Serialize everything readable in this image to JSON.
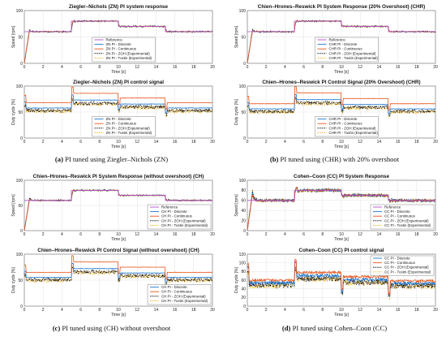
{
  "captions": [
    {
      "letter": "(a)",
      "text": " PI tuned using Ziegler–Nichols (ZN)"
    },
    {
      "letter": "(b)",
      "text": " PI tuned using (CHR) with 20% overshoot"
    },
    {
      "letter": "(c)",
      "text": " PI tuned using (CH) without overshoot"
    },
    {
      "letter": "(d)",
      "text": " PI tuned using Cohen–Coon (CC)"
    }
  ],
  "chart_data": [
    {
      "type": "line",
      "panel": "a-top",
      "title": "Ziegler–Nichols (ZN) PI system response",
      "xlabel": "Time [s]",
      "ylabel": "Speed [rpm]",
      "xlim": [
        0,
        20
      ],
      "ylim": [
        0,
        100
      ],
      "xticks": [
        "0",
        "2",
        "4",
        "6",
        "8",
        "10",
        "12",
        "14",
        "16",
        "18",
        "20"
      ],
      "yticks": [
        "0",
        "50",
        "100"
      ],
      "grid": true,
      "legend_position": "lower-center",
      "legend": [
        "Reference",
        "ZN PI - Discrete",
        "ZN PI - Continuous",
        "ZN PI - ZOH (Experimental)",
        "ZN PI - Tustin (Experimental)"
      ],
      "reference": [
        [
          0,
          60
        ],
        [
          5,
          60
        ],
        [
          5,
          80
        ],
        [
          10,
          80
        ],
        [
          10,
          70
        ],
        [
          15,
          70
        ],
        [
          15,
          60
        ],
        [
          20,
          60
        ]
      ]
    },
    {
      "type": "line",
      "panel": "a-bottom",
      "title": "Ziegler–Nichols (ZN) PI control signal",
      "xlabel": "Time [s]",
      "ylabel": "Duty cycle [%]",
      "xlim": [
        0,
        20
      ],
      "ylim": [
        0,
        100
      ],
      "xticks": [
        "0",
        "2",
        "4",
        "6",
        "8",
        "10",
        "12",
        "14",
        "16",
        "18",
        "20"
      ],
      "yticks": [
        "0",
        "50",
        "100"
      ],
      "grid": true,
      "legend_position": "lower-center",
      "legend": [
        "ZN PI - Discrete",
        "ZN PI - Continuous",
        "ZN PI - ZOH (Experimental)",
        "ZN PI - Tustin (Experimental)"
      ],
      "levels": [
        [
          0,
          68
        ],
        [
          5,
          86
        ],
        [
          10,
          77
        ],
        [
          15,
          68
        ],
        [
          20,
          68
        ]
      ]
    },
    {
      "type": "line",
      "panel": "b-top",
      "title": "Chien–Hrones–Reswick  PI System Response (20% Overshoot) (CHR)",
      "xlabel": "Time [s]",
      "ylabel": "Speed [rpm]",
      "xlim": [
        0,
        20
      ],
      "ylim": [
        0,
        100
      ],
      "xticks": [
        "0",
        "2",
        "4",
        "6",
        "8",
        "10",
        "12",
        "14",
        "16",
        "18",
        "20"
      ],
      "yticks": [
        "0",
        "50",
        "100"
      ],
      "grid": true,
      "legend_position": "lower-center",
      "legend": [
        "Reference",
        "CHR PI - Discrete",
        "CHR PI - Continuous",
        "CHR PI - ZOH (Experimental)",
        "CHR PI - Tustin (Experimental)"
      ],
      "reference": [
        [
          0,
          60
        ],
        [
          5,
          60
        ],
        [
          5,
          80
        ],
        [
          10,
          80
        ],
        [
          10,
          70
        ],
        [
          15,
          70
        ],
        [
          15,
          60
        ],
        [
          20,
          60
        ]
      ]
    },
    {
      "type": "line",
      "panel": "b-bottom",
      "title": "Chien–Hrones–Reswick PI Control Signal (20% Overshoot) (CHR)",
      "xlabel": "Time [s]",
      "ylabel": "Duty cycle [%]",
      "xlim": [
        0,
        20
      ],
      "ylim": [
        0,
        100
      ],
      "xticks": [
        "0",
        "2",
        "4",
        "6",
        "8",
        "10",
        "12",
        "14",
        "16",
        "18",
        "20"
      ],
      "yticks": [
        "0",
        "50",
        "100"
      ],
      "grid": true,
      "legend_position": "lower-center",
      "legend": [
        "CHR PI - Discrete",
        "CHR PI - Continuous",
        "CHR PI - ZOH (Experimental)",
        "CHR PI - Tustin (Experimental)"
      ],
      "levels": [
        [
          0,
          66
        ],
        [
          5,
          87
        ],
        [
          10,
          76
        ],
        [
          15,
          66
        ],
        [
          20,
          66
        ]
      ]
    },
    {
      "type": "line",
      "panel": "c-top",
      "title": "Chien–Hrones–Reswick  PI System Response (without overshoot) (CH)",
      "xlabel": "Time [s]",
      "ylabel": "Speed [rpm]",
      "xlim": [
        0,
        20
      ],
      "ylim": [
        0,
        100
      ],
      "xticks": [
        "0",
        "2",
        "4",
        "6",
        "8",
        "10",
        "12",
        "14",
        "16",
        "18",
        "20"
      ],
      "yticks": [
        "0",
        "50",
        "100"
      ],
      "grid": true,
      "legend_position": "lower-right",
      "legend": [
        "Reference",
        "CH PI - Discrete",
        "CH PI - Continuous",
        "CH PI - ZOH (Experimental)",
        "CH PI - Tustin (Experimental)"
      ],
      "reference": [
        [
          0,
          60
        ],
        [
          5,
          60
        ],
        [
          5,
          80
        ],
        [
          10,
          80
        ],
        [
          10,
          70
        ],
        [
          15,
          70
        ],
        [
          15,
          60
        ],
        [
          20,
          60
        ]
      ]
    },
    {
      "type": "line",
      "panel": "c-bottom",
      "title": "Chien–Hrones–Reswick PI Control Signal (without overshoot) (CH)",
      "xlabel": "Time [s]",
      "ylabel": "Duty cycle [%]",
      "xlim": [
        0,
        20
      ],
      "ylim": [
        0,
        100
      ],
      "xticks": [
        "0",
        "2",
        "4",
        "6",
        "8",
        "10",
        "12",
        "14",
        "16",
        "18",
        "20"
      ],
      "yticks": [
        "0",
        "50",
        "100"
      ],
      "grid": true,
      "legend_position": "lower-right",
      "legend": [
        "CH PI - Discrete",
        "CH PI - Continuous",
        "CH PI - ZOH (Experimental)",
        "CH PI - Tustin (Experimental)"
      ],
      "levels": [
        [
          0,
          65
        ],
        [
          5,
          85
        ],
        [
          10,
          75
        ],
        [
          15,
          65
        ],
        [
          20,
          65
        ]
      ]
    },
    {
      "type": "line",
      "panel": "d-top",
      "title": "Cohen–Coon (CC) PI System Response",
      "xlabel": "Time [s]",
      "ylabel": "Speed [rpm]",
      "xlim": [
        0,
        20
      ],
      "ylim": [
        0,
        100
      ],
      "xticks": [
        "0",
        "2",
        "4",
        "6",
        "8",
        "10",
        "12",
        "14",
        "16",
        "18",
        "20"
      ],
      "yticks": [
        "0",
        "20",
        "40",
        "60",
        "80",
        "100"
      ],
      "grid": true,
      "legend_position": "lower-right",
      "legend": [
        "Reference",
        "CC PI - Discrete",
        "CC PI - Continuous",
        "CC PI - ZOH (Experimental)",
        "CC PI - Tustin (Experimental)"
      ],
      "reference": [
        [
          0,
          60
        ],
        [
          5,
          60
        ],
        [
          5,
          80
        ],
        [
          10,
          80
        ],
        [
          10,
          70
        ],
        [
          15,
          70
        ],
        [
          15,
          60
        ],
        [
          20,
          60
        ]
      ]
    },
    {
      "type": "line",
      "panel": "d-bottom",
      "title": "Cohen–Coon (CC) PI control signal",
      "xlabel": "Time [s]",
      "ylabel": "Duty cycle [%]",
      "xlim": [
        0,
        20
      ],
      "ylim": [
        0,
        120
      ],
      "xticks": [
        "0",
        "2",
        "4",
        "6",
        "8",
        "10",
        "12",
        "14",
        "16",
        "18",
        "20"
      ],
      "yticks": [
        "0",
        "20",
        "40",
        "60",
        "80",
        "100",
        "120"
      ],
      "grid": true,
      "legend_position": "top-right",
      "legend": [
        "CC PI - Discrete",
        "CC PI - Continuous",
        "CC PI - ZOH (Experimental)",
        "CC PI - Tustin (Experimental)"
      ],
      "levels": [
        [
          0,
          60
        ],
        [
          5,
          78
        ],
        [
          10,
          68
        ],
        [
          15,
          58
        ],
        [
          20,
          58
        ]
      ]
    }
  ],
  "colors": {
    "reference": "#b04fd0",
    "discrete": "#1f77d0",
    "continuous": "#e8541a",
    "zoh": "#000000",
    "tustin": "#f0b41e",
    "grid": "#dcdcdc"
  }
}
